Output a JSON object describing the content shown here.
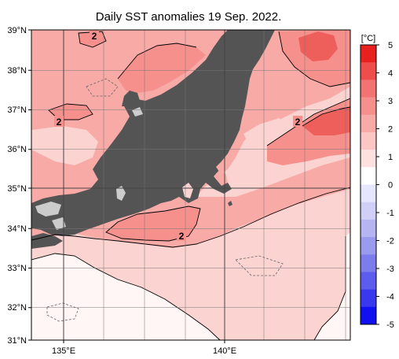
{
  "title": "Daily SST anomalies 19 Sep. 2022.",
  "latitude_labels": [
    "39°N",
    "38°N",
    "37°N",
    "36°N",
    "35°N",
    "34°N",
    "33°N",
    "32°N",
    "31°N"
  ],
  "longitude_labels": [
    "135°E",
    "140°E"
  ],
  "colorbar": {
    "unit": "[°C]",
    "ticks": [
      "5",
      "4",
      "3",
      "2",
      "1",
      "0",
      "-1",
      "-2",
      "-3",
      "-4",
      "-5"
    ],
    "colors_top_to_bottom": [
      "#e8201e",
      "#ee4d4a",
      "#f27371",
      "#f5908d",
      "#f8aaa7",
      "#fbc6c3",
      "#fde1df",
      "#ffffff",
      "#e6e6ff",
      "#cfcff8",
      "#b5b5f2",
      "#9a9aef",
      "#7c7cec",
      "#5c5cee",
      "#3838ef",
      "#1010f0"
    ]
  },
  "contour_labels": [
    "2",
    "2",
    "2",
    "2"
  ],
  "colors": {
    "land": "#545454",
    "sea_light": "#fbd3d1",
    "anomaly_1": "#f8aaa7",
    "anomaly_2": "#f5908d",
    "anomaly_3": "#ee5e5b",
    "near_zero": "#fff2f1",
    "lake": "#cccccc"
  }
}
